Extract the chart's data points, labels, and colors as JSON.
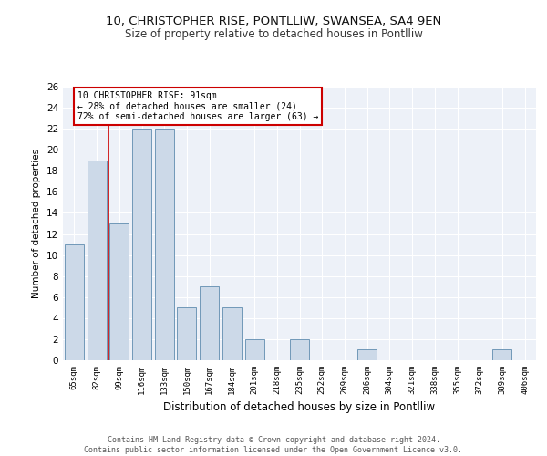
{
  "title1": "10, CHRISTOPHER RISE, PONTLLIW, SWANSEA, SA4 9EN",
  "title2": "Size of property relative to detached houses in Pontlliw",
  "xlabel": "Distribution of detached houses by size in Pontlliw",
  "ylabel": "Number of detached properties",
  "categories": [
    "65sqm",
    "82sqm",
    "99sqm",
    "116sqm",
    "133sqm",
    "150sqm",
    "167sqm",
    "184sqm",
    "201sqm",
    "218sqm",
    "235sqm",
    "252sqm",
    "269sqm",
    "286sqm",
    "304sqm",
    "321sqm",
    "338sqm",
    "355sqm",
    "372sqm",
    "389sqm",
    "406sqm"
  ],
  "values": [
    11,
    19,
    13,
    22,
    22,
    5,
    7,
    5,
    2,
    0,
    2,
    0,
    0,
    1,
    0,
    0,
    0,
    0,
    0,
    1,
    0
  ],
  "bar_color": "#ccd9e8",
  "bar_edge_color": "#7098b8",
  "subject_line_color": "#cc0000",
  "annotation_box_color": "#cc0000",
  "annotation_text": "10 CHRISTOPHER RISE: 91sqm\n← 28% of detached houses are smaller (24)\n72% of semi-detached houses are larger (63) →",
  "ylim": [
    0,
    26
  ],
  "yticks": [
    0,
    2,
    4,
    6,
    8,
    10,
    12,
    14,
    16,
    18,
    20,
    22,
    24,
    26
  ],
  "background_color": "#edf1f8",
  "footer": "Contains HM Land Registry data © Crown copyright and database right 2024.\nContains public sector information licensed under the Open Government Licence v3.0.",
  "grid_color": "#ffffff",
  "title_fontsize": 9.5,
  "subtitle_fontsize": 8.5
}
